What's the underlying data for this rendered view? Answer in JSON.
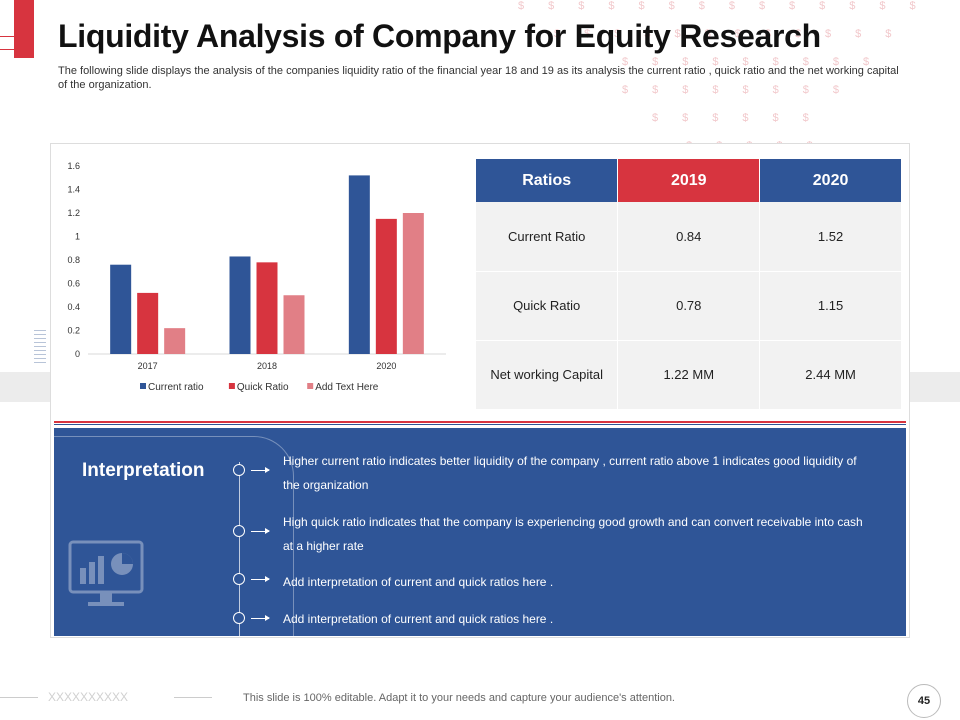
{
  "title": "Liquidity Analysis of Company for Equity Research",
  "subtitle": "The following slide displays the analysis of the companies liquidity ratio of the financial year 18 and 19 as its analysis the current ratio , quick ratio and the net working capital of the organization.",
  "background_pattern": {
    "glyph": "$",
    "color": "#f2c9cc"
  },
  "colors": {
    "accent_red": "#d7343f",
    "brand_blue": "#2f5597",
    "light_red": "#e17f86",
    "table_cell_bg": "#f2f2f2"
  },
  "chart_data": {
    "type": "bar",
    "categories": [
      "2017",
      "2018",
      "2020"
    ],
    "series": [
      {
        "name": "Current ratio",
        "color": "#2f5597",
        "values": [
          0.76,
          0.83,
          1.52
        ]
      },
      {
        "name": "Quick Ratio",
        "color": "#d7343f",
        "values": [
          0.52,
          0.78,
          1.15
        ]
      },
      {
        "name": "Add Text Here",
        "color": "#e17f86",
        "values": [
          0.22,
          0.5,
          1.2
        ]
      }
    ],
    "ylim": [
      0,
      1.6
    ],
    "yticks": [
      "0",
      "0.2",
      "0.4",
      "0.6",
      "0.8",
      "1",
      "1.2",
      "1.4",
      "1.6"
    ],
    "grid": false,
    "legend": "bottom",
    "title": "",
    "xlabel": "",
    "ylabel": ""
  },
  "table": {
    "headers": [
      "Ratios",
      "2019",
      "2020"
    ],
    "rows": [
      [
        "Current  Ratio",
        "0.84",
        "1.52"
      ],
      [
        "Quick Ratio",
        "0.78",
        "1.15"
      ],
      [
        "Net working  Capital",
        "1.22 MM",
        "2.44 MM"
      ]
    ]
  },
  "interpretation": {
    "title": "Interpretation",
    "points": [
      "Higher current ratio indicates better liquidity of the company , current ratio above 1 indicates good liquidity of the organization",
      "High quick ratio indicates that the company is experiencing good growth and can convert receivable into cash at a higher rate",
      "Add interpretation of current and quick ratios here .",
      "Add interpretation of current and quick ratios here ."
    ],
    "icon": "chart-monitor-icon"
  },
  "footer": {
    "decoration": "XXXXXXXXXX",
    "text": "This slide is 100% editable. Adapt it to your needs and capture your audience's attention.",
    "page_number": "45"
  }
}
